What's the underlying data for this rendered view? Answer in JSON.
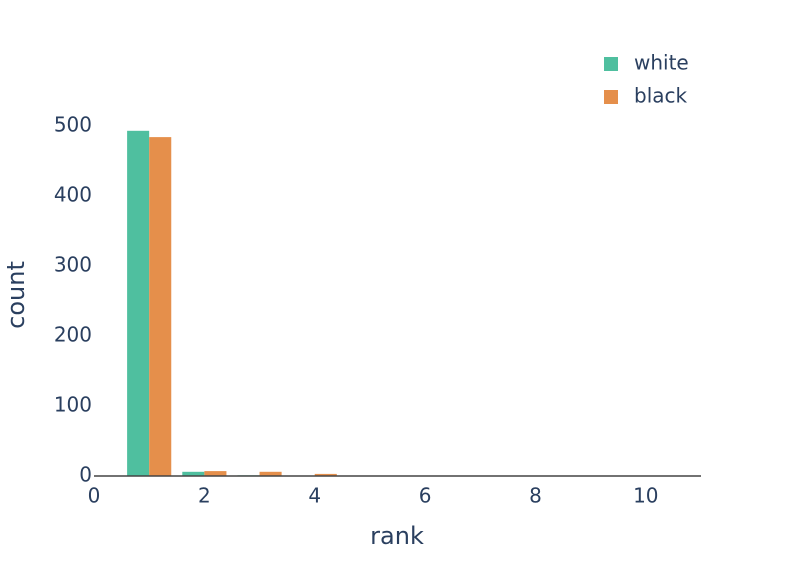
{
  "chart_data": {
    "type": "bar",
    "x": [
      1,
      2,
      3,
      4
    ],
    "series": [
      {
        "name": "white",
        "color": "#4fbf9f",
        "values": [
          493,
          6,
          1,
          0
        ]
      },
      {
        "name": "black",
        "color": "#e58f4b",
        "values": [
          484,
          7,
          6,
          3
        ]
      }
    ],
    "xlabel": "rank",
    "ylabel": "count",
    "xlim": [
      0,
      11
    ],
    "xticks": [
      0,
      2,
      4,
      6,
      8,
      10
    ],
    "ylim": [
      0,
      537
    ],
    "yticks": [
      0,
      100,
      200,
      300,
      400,
      500
    ],
    "legend": "top-right"
  }
}
